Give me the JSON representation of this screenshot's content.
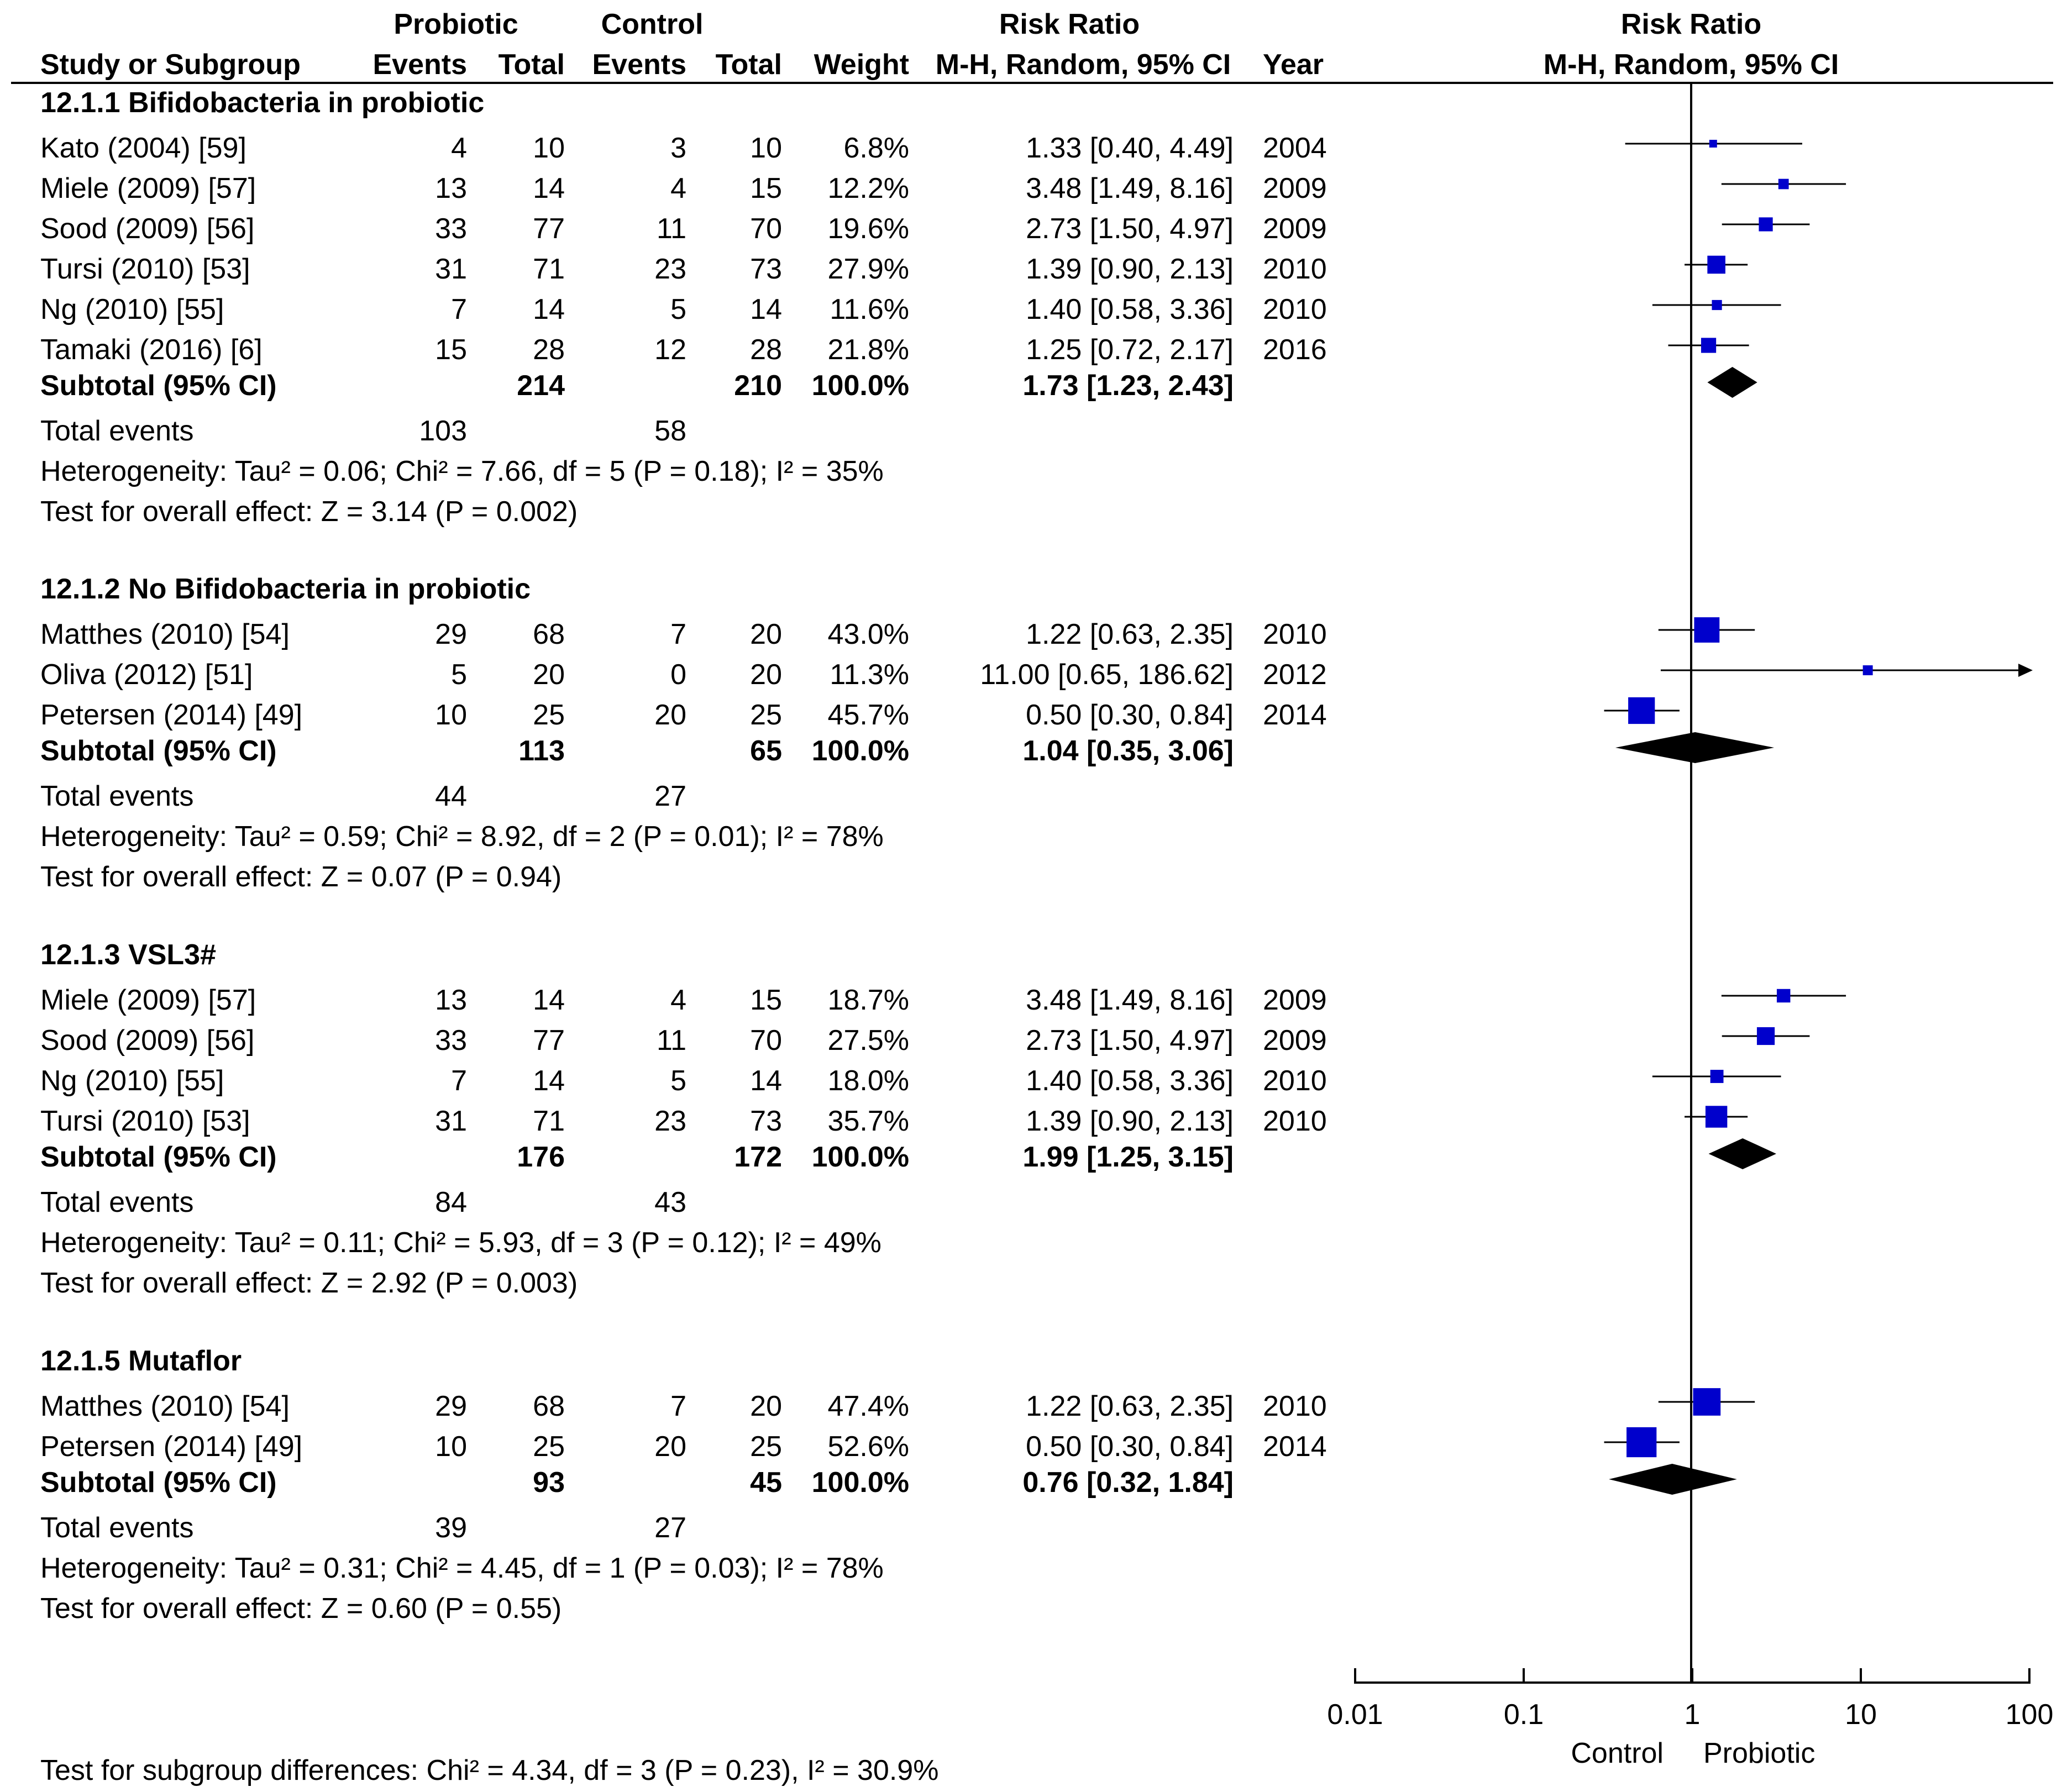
{
  "headers": {
    "probiotic": "Probiotic",
    "control": "Control",
    "risk_ratio": "Risk Ratio",
    "risk_ratio_plot": "Risk Ratio",
    "study": "Study or Subgroup",
    "events1": "Events",
    "total1": "Total",
    "events2": "Events",
    "total2": "Total",
    "weight": "Weight",
    "method": "M-H, Random, 95% CI",
    "year": "Year",
    "method_plot": "M-H, Random, 95% CI"
  },
  "groups": [
    {
      "title": "12.1.1 Bifidobacteria in probiotic",
      "studies": [
        {
          "name": "Kato (2004) [59]",
          "e1": "4",
          "t1": "10",
          "e2": "3",
          "t2": "10",
          "weight": "6.8%",
          "ci": "1.33 [0.40, 4.49]",
          "year": "2004",
          "rr": 1.33,
          "lo": 0.4,
          "hi": 4.49,
          "w": 6.8
        },
        {
          "name": "Miele (2009) [57]",
          "e1": "13",
          "t1": "14",
          "e2": "4",
          "t2": "15",
          "weight": "12.2%",
          "ci": "3.48 [1.49, 8.16]",
          "year": "2009",
          "rr": 3.48,
          "lo": 1.49,
          "hi": 8.16,
          "w": 12.2
        },
        {
          "name": "Sood (2009) [56]",
          "e1": "33",
          "t1": "77",
          "e2": "11",
          "t2": "70",
          "weight": "19.6%",
          "ci": "2.73 [1.50, 4.97]",
          "year": "2009",
          "rr": 2.73,
          "lo": 1.5,
          "hi": 4.97,
          "w": 19.6
        },
        {
          "name": "Tursi (2010) [53]",
          "e1": "31",
          "t1": "71",
          "e2": "23",
          "t2": "73",
          "weight": "27.9%",
          "ci": "1.39 [0.90, 2.13]",
          "year": "2010",
          "rr": 1.39,
          "lo": 0.9,
          "hi": 2.13,
          "w": 27.9
        },
        {
          "name": "Ng (2010) [55]",
          "e1": "7",
          "t1": "14",
          "e2": "5",
          "t2": "14",
          "weight": "11.6%",
          "ci": "1.40 [0.58, 3.36]",
          "year": "2010",
          "rr": 1.4,
          "lo": 0.58,
          "hi": 3.36,
          "w": 11.6
        },
        {
          "name": "Tamaki (2016) [6]",
          "e1": "15",
          "t1": "28",
          "e2": "12",
          "t2": "28",
          "weight": "21.8%",
          "ci": "1.25 [0.72, 2.17]",
          "year": "2016",
          "rr": 1.25,
          "lo": 0.72,
          "hi": 2.17,
          "w": 21.8
        }
      ],
      "subtotal": {
        "label": "Subtotal (95% CI)",
        "t1": "214",
        "t2": "210",
        "weight": "100.0%",
        "ci": "1.73 [1.23, 2.43]",
        "rr": 1.73,
        "lo": 1.23,
        "hi": 2.43
      },
      "total_events": {
        "label": "Total events",
        "e1": "103",
        "e2": "58"
      },
      "heterogeneity": "Heterogeneity: Tau² = 0.06; Chi² = 7.66, df = 5 (P = 0.18); I² = 35%",
      "overall": "Test for overall effect: Z = 3.14 (P = 0.002)"
    },
    {
      "title": "12.1.2 No Bifidobacteria in probiotic",
      "studies": [
        {
          "name": "Matthes (2010) [54]",
          "e1": "29",
          "t1": "68",
          "e2": "7",
          "t2": "20",
          "weight": "43.0%",
          "ci": "1.22 [0.63, 2.35]",
          "year": "2010",
          "rr": 1.22,
          "lo": 0.63,
          "hi": 2.35,
          "w": 43.0
        },
        {
          "name": "Oliva (2012) [51]",
          "e1": "5",
          "t1": "20",
          "e2": "0",
          "t2": "20",
          "weight": "11.3%",
          "ci": "11.00 [0.65, 186.62]",
          "year": "2012",
          "rr": 11.0,
          "lo": 0.65,
          "hi": 186.62,
          "w": 11.3
        },
        {
          "name": "Petersen (2014) [49]",
          "e1": "10",
          "t1": "25",
          "e2": "20",
          "t2": "25",
          "weight": "45.7%",
          "ci": "0.50 [0.30, 0.84]",
          "year": "2014",
          "rr": 0.5,
          "lo": 0.3,
          "hi": 0.84,
          "w": 45.7
        }
      ],
      "subtotal": {
        "label": "Subtotal (95% CI)",
        "t1": "113",
        "t2": "65",
        "weight": "100.0%",
        "ci": "1.04 [0.35, 3.06]",
        "rr": 1.04,
        "lo": 0.35,
        "hi": 3.06
      },
      "total_events": {
        "label": "Total events",
        "e1": "44",
        "e2": "27"
      },
      "heterogeneity": "Heterogeneity: Tau² = 0.59; Chi² = 8.92, df = 2 (P = 0.01); I² = 78%",
      "overall": "Test for overall effect: Z = 0.07 (P = 0.94)"
    },
    {
      "title": "12.1.3 VSL3#",
      "studies": [
        {
          "name": "Miele (2009) [57]",
          "e1": "13",
          "t1": "14",
          "e2": "4",
          "t2": "15",
          "weight": "18.7%",
          "ci": "3.48 [1.49, 8.16]",
          "year": "2009",
          "rr": 3.48,
          "lo": 1.49,
          "hi": 8.16,
          "w": 18.7
        },
        {
          "name": "Sood (2009) [56]",
          "e1": "33",
          "t1": "77",
          "e2": "11",
          "t2": "70",
          "weight": "27.5%",
          "ci": "2.73 [1.50, 4.97]",
          "year": "2009",
          "rr": 2.73,
          "lo": 1.5,
          "hi": 4.97,
          "w": 27.5
        },
        {
          "name": "Ng (2010) [55]",
          "e1": "7",
          "t1": "14",
          "e2": "5",
          "t2": "14",
          "weight": "18.0%",
          "ci": "1.40 [0.58, 3.36]",
          "year": "2010",
          "rr": 1.4,
          "lo": 0.58,
          "hi": 3.36,
          "w": 18.0
        },
        {
          "name": "Tursi (2010) [53]",
          "e1": "31",
          "t1": "71",
          "e2": "23",
          "t2": "73",
          "weight": "35.7%",
          "ci": "1.39 [0.90, 2.13]",
          "year": "2010",
          "rr": 1.39,
          "lo": 0.9,
          "hi": 2.13,
          "w": 35.7
        }
      ],
      "subtotal": {
        "label": "Subtotal (95% CI)",
        "t1": "176",
        "t2": "172",
        "weight": "100.0%",
        "ci": "1.99 [1.25, 3.15]",
        "rr": 1.99,
        "lo": 1.25,
        "hi": 3.15
      },
      "total_events": {
        "label": "Total events",
        "e1": "84",
        "e2": "43"
      },
      "heterogeneity": "Heterogeneity: Tau² = 0.11; Chi² = 5.93, df = 3 (P = 0.12); I² = 49%",
      "overall": "Test for overall effect: Z = 2.92 (P = 0.003)"
    },
    {
      "title": "12.1.5 Mutaflor",
      "studies": [
        {
          "name": "Matthes (2010) [54]",
          "e1": "29",
          "t1": "68",
          "e2": "7",
          "t2": "20",
          "weight": "47.4%",
          "ci": "1.22 [0.63, 2.35]",
          "year": "2010",
          "rr": 1.22,
          "lo": 0.63,
          "hi": 2.35,
          "w": 47.4
        },
        {
          "name": "Petersen (2014) [49]",
          "e1": "10",
          "t1": "25",
          "e2": "20",
          "t2": "25",
          "weight": "52.6%",
          "ci": "0.50 [0.30, 0.84]",
          "year": "2014",
          "rr": 0.5,
          "lo": 0.3,
          "hi": 0.84,
          "w": 52.6
        }
      ],
      "subtotal": {
        "label": "Subtotal (95% CI)",
        "t1": "93",
        "t2": "45",
        "weight": "100.0%",
        "ci": "0.76 [0.32, 1.84]",
        "rr": 0.76,
        "lo": 0.32,
        "hi": 1.84
      },
      "total_events": {
        "label": "Total events",
        "e1": "39",
        "e2": "27"
      },
      "heterogeneity": "Heterogeneity: Tau² = 0.31; Chi² = 4.45, df = 1 (P = 0.03); I² = 78%",
      "overall": "Test for overall effect: Z = 0.60 (P = 0.55)"
    }
  ],
  "footer": "Test for subgroup differences: Chi² = 4.34, df = 3 (P = 0.23), I² = 30.9%",
  "chart_data": {
    "type": "forest",
    "title": "Risk Ratio M-H, Random, 95% CI",
    "x_scale": "log",
    "xlim": [
      0.01,
      100
    ],
    "ticks": [
      {
        "value": 0.01,
        "label": "0.01"
      },
      {
        "value": 0.1,
        "label": "0.1"
      },
      {
        "value": 1,
        "label": "1"
      },
      {
        "value": 10,
        "label": "10"
      },
      {
        "value": 100,
        "label": "100"
      }
    ],
    "favours_left": "Control",
    "favours_right": "Probiotic",
    "reference_line": 1
  },
  "colors": {
    "marker": "#0000cc",
    "diamond": "#000000",
    "line": "#000000"
  }
}
